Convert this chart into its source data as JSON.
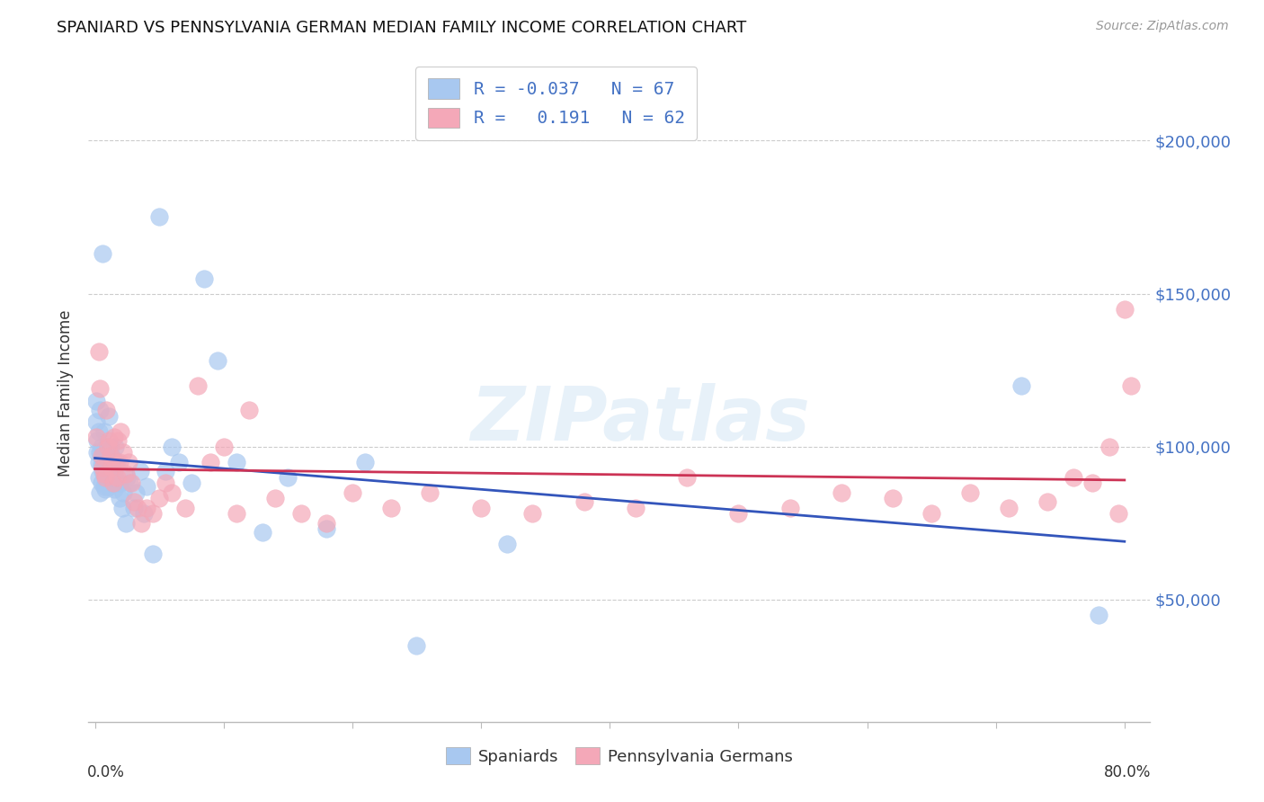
{
  "title": "SPANIARD VS PENNSYLVANIA GERMAN MEDIAN FAMILY INCOME CORRELATION CHART",
  "source": "Source: ZipAtlas.com",
  "ylabel": "Median Family Income",
  "ytick_labels": [
    "$50,000",
    "$100,000",
    "$150,000",
    "$200,000"
  ],
  "ytick_values": [
    50000,
    100000,
    150000,
    200000
  ],
  "ylim": [
    10000,
    225000
  ],
  "xlim": [
    -0.005,
    0.82
  ],
  "color_blue": "#a8c8f0",
  "color_pink": "#f4a8b8",
  "color_line_blue": "#3355bb",
  "color_line_pink": "#cc3355",
  "color_legend_text": "#4472c4",
  "color_ytick": "#4472c4",
  "watermark_text": "ZIPatlas",
  "legend1_label": "R = -0.037   N = 67",
  "legend2_label": "R =   0.191   N = 62",
  "bottom_legend1": "Spaniards",
  "bottom_legend2": "Pennsylvania Germans",
  "spaniards_x": [
    0.001,
    0.001,
    0.002,
    0.002,
    0.003,
    0.003,
    0.003,
    0.004,
    0.004,
    0.004,
    0.005,
    0.005,
    0.005,
    0.006,
    0.006,
    0.006,
    0.007,
    0.007,
    0.007,
    0.008,
    0.008,
    0.008,
    0.009,
    0.009,
    0.01,
    0.01,
    0.011,
    0.011,
    0.012,
    0.012,
    0.013,
    0.013,
    0.014,
    0.015,
    0.015,
    0.016,
    0.017,
    0.018,
    0.019,
    0.02,
    0.021,
    0.022,
    0.024,
    0.025,
    0.027,
    0.03,
    0.032,
    0.035,
    0.038,
    0.04,
    0.045,
    0.05,
    0.055,
    0.06,
    0.065,
    0.075,
    0.085,
    0.095,
    0.11,
    0.13,
    0.15,
    0.18,
    0.21,
    0.25,
    0.32,
    0.72,
    0.78
  ],
  "spaniards_y": [
    108000,
    115000,
    102000,
    98000,
    105000,
    95000,
    90000,
    112000,
    98000,
    85000,
    100000,
    94000,
    88000,
    163000,
    96000,
    92000,
    105000,
    98000,
    87000,
    95000,
    91000,
    86000,
    100000,
    88000,
    95000,
    93000,
    110000,
    87000,
    100000,
    95000,
    92000,
    88000,
    96000,
    91000,
    86000,
    100000,
    95000,
    88000,
    83000,
    88000,
    80000,
    85000,
    75000,
    90000,
    88000,
    80000,
    85000,
    92000,
    78000,
    87000,
    65000,
    175000,
    92000,
    100000,
    95000,
    88000,
    155000,
    128000,
    95000,
    72000,
    90000,
    73000,
    95000,
    35000,
    68000,
    120000,
    45000
  ],
  "pagermans_x": [
    0.001,
    0.003,
    0.004,
    0.005,
    0.006,
    0.007,
    0.008,
    0.009,
    0.01,
    0.011,
    0.012,
    0.013,
    0.014,
    0.015,
    0.016,
    0.017,
    0.018,
    0.019,
    0.02,
    0.022,
    0.024,
    0.026,
    0.028,
    0.03,
    0.033,
    0.036,
    0.04,
    0.045,
    0.05,
    0.055,
    0.06,
    0.07,
    0.08,
    0.09,
    0.1,
    0.11,
    0.12,
    0.14,
    0.16,
    0.18,
    0.2,
    0.23,
    0.26,
    0.3,
    0.34,
    0.38,
    0.42,
    0.46,
    0.5,
    0.54,
    0.58,
    0.62,
    0.65,
    0.68,
    0.71,
    0.74,
    0.76,
    0.775,
    0.788,
    0.795,
    0.8,
    0.805
  ],
  "pagermans_y": [
    103000,
    131000,
    119000,
    97000,
    93000,
    91000,
    90000,
    112000,
    100000,
    102000,
    97000,
    93000,
    88000,
    103000,
    95000,
    90000,
    102000,
    95000,
    105000,
    98000,
    91000,
    95000,
    88000,
    82000,
    80000,
    75000,
    80000,
    78000,
    83000,
    88000,
    85000,
    80000,
    120000,
    95000,
    100000,
    78000,
    112000,
    83000,
    78000,
    75000,
    85000,
    80000,
    85000,
    80000,
    78000,
    82000,
    80000,
    90000,
    78000,
    80000,
    85000,
    83000,
    78000,
    85000,
    80000,
    82000,
    90000,
    88000,
    100000,
    78000,
    145000,
    120000
  ]
}
